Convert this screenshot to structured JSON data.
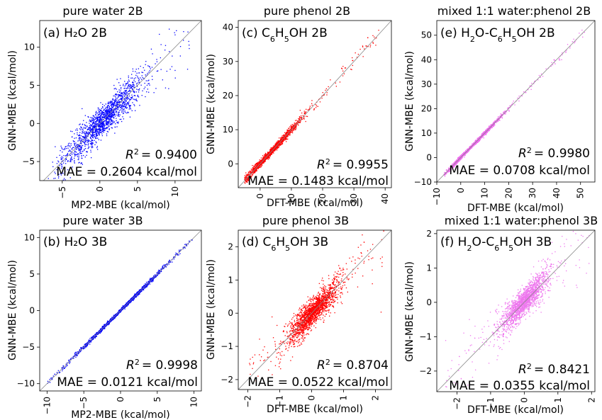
{
  "chart_data": [
    {
      "type": "scatter",
      "title": "pure water 2B",
      "panel_label": "(a) H₂O 2B",
      "xlabel": "MP2-MBE (kcal/mol)",
      "ylabel": "GNN-MBE (kcal/mol)",
      "color": "#0000ff",
      "xlim": [
        -8,
        13.5
      ],
      "ylim": [
        -7.5,
        13.5
      ],
      "xticks": [
        -5,
        0,
        5,
        10
      ],
      "yticks": [
        -5,
        0,
        5,
        10
      ],
      "r2": "= 0.9400",
      "mae": "MAE = 0.2604 kcal/mol",
      "points_shown": {
        "center": [
          0.5,
          0.5
        ],
        "spread_major": 2.6,
        "noise": 0.9,
        "x_range": [
          -7,
          12
        ]
      }
    },
    {
      "type": "scatter",
      "title": "pure phenol 2B",
      "panel_label": "(c) C₆H₅OH 2B",
      "xlabel": "DFT-MBE (kcal/mol)",
      "ylabel": "GNN-MBE (kcal/mol)",
      "color": "#ff0000",
      "xlim": [
        -7,
        42
      ],
      "ylim": [
        -7,
        42
      ],
      "xticks": [
        0,
        10,
        20,
        30,
        40
      ],
      "yticks": [
        0,
        10,
        20,
        30,
        40
      ],
      "r2": "= 0.9955",
      "mae": "MAE = 0.1483 kcal/mol",
      "points_shown": {
        "center": [
          3,
          3
        ],
        "spread_major": 5,
        "noise": 0.45,
        "x_range": [
          -5,
          38
        ]
      }
    },
    {
      "type": "scatter",
      "title": "mixed 1:1 water:phenol 2B",
      "panel_label": "(e) H₂O-C₆H₅OH 2B",
      "xlabel": "DFT-MBE (kcal/mol)",
      "ylabel": "GNN-MBE (kcal/mol)",
      "color": "#ee66ee",
      "xlim": [
        -10,
        56
      ],
      "ylim": [
        -10,
        56
      ],
      "xticks": [
        -10,
        0,
        10,
        20,
        30,
        40,
        50
      ],
      "yticks": [
        -10,
        0,
        10,
        20,
        30,
        40,
        50
      ],
      "r2": "= 0.9980",
      "mae": "MAE = 0.0708 kcal/mol",
      "points_shown": {
        "center": [
          5,
          5
        ],
        "spread_major": 6,
        "noise": 0.3,
        "x_range": [
          -7,
          52
        ]
      }
    },
    {
      "type": "scatter",
      "title": "pure water 3B",
      "panel_label": "(b) H₂O 3B",
      "xlabel": "MP2-MBE (kcal/mol)",
      "ylabel": "GNN-MBE (kcal/mol)",
      "color": "#0000ff",
      "xlim": [
        -11,
        11
      ],
      "ylim": [
        -11,
        11
      ],
      "xticks": [
        -10,
        -5,
        0,
        5,
        10
      ],
      "yticks": [
        -10,
        -5,
        0,
        5,
        10
      ],
      "r2": "= 0.9998",
      "mae": "MAE = 0.0121 kcal/mol",
      "points_shown": {
        "center": [
          0,
          0
        ],
        "spread_major": 3.2,
        "noise": 0.1,
        "x_range": [
          -10,
          10
        ]
      }
    },
    {
      "type": "scatter",
      "title": "pure phenol 3B",
      "panel_label": "(d) C₆H₅OH 3B",
      "xlabel": "DFT-MBE (kcal/mol)",
      "ylabel": "GNN-MBE (kcal/mol)",
      "color": "#ff0000",
      "xlim": [
        -2.3,
        2.5
      ],
      "ylim": [
        -2.3,
        2.5
      ],
      "xticks": [
        -2,
        -1,
        0,
        1,
        2
      ],
      "yticks": [
        -2,
        -1,
        0,
        1,
        2
      ],
      "r2": "= 0.8704",
      "mae": "MAE = 0.0522 kcal/mol",
      "points_shown": {
        "center": [
          0.05,
          0.05
        ],
        "spread_major": 0.4,
        "noise": 0.17,
        "x_range": [
          -2,
          2.3
        ]
      }
    },
    {
      "type": "scatter",
      "title": "mixed 1:1 water:phenol 3B",
      "panel_label": "(f) H₂O-C₆H₅OH 3B",
      "xlabel": "DFT-MBE (kcal/mol)",
      "ylabel": "GNN-MBE (kcal/mol)",
      "color": "#ee77ee",
      "xlim": [
        -2.6,
        2.1
      ],
      "ylim": [
        -2.6,
        2.1
      ],
      "xticks": [
        -2,
        -1,
        0,
        1,
        2
      ],
      "yticks": [
        -2,
        -1,
        0,
        1,
        2
      ],
      "r2": "= 0.8421",
      "mae": "MAE = 0.0355 kcal/mol",
      "points_shown": {
        "center": [
          0,
          0.02
        ],
        "spread_major": 0.35,
        "noise": 0.17,
        "x_range": [
          -2.4,
          2
        ]
      }
    }
  ]
}
